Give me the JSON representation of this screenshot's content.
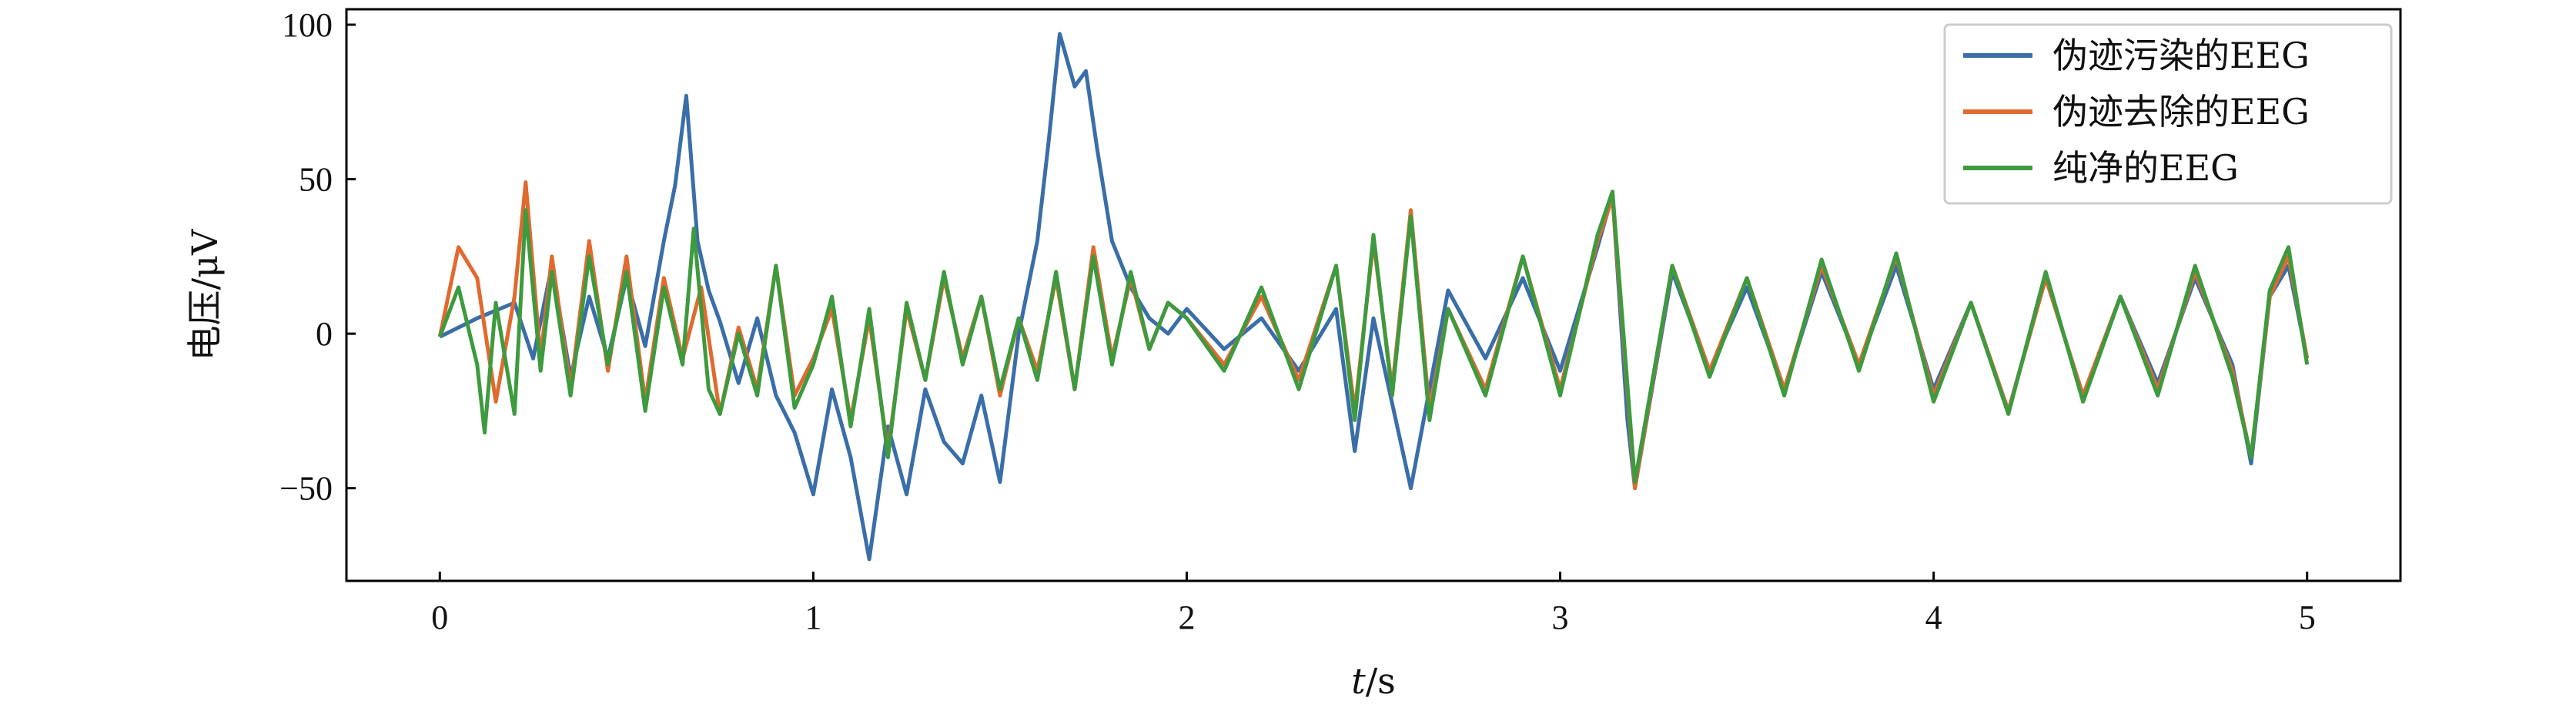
{
  "chart_data": {
    "type": "line",
    "xlabel_italic": "t",
    "xlabel_unit": "/s",
    "ylabel": "电压/μV",
    "xlim": [
      -0.25,
      5.25
    ],
    "ylim": [
      -80,
      105
    ],
    "xticks": [
      0,
      1,
      2,
      3,
      4,
      5
    ],
    "xtick_labels": [
      "0",
      "1",
      "2",
      "3",
      "4",
      "5"
    ],
    "yticks": [
      -50,
      0,
      50,
      100
    ],
    "ytick_labels": [
      "−50",
      "0",
      "50",
      "100"
    ],
    "grid": false,
    "legend_position": "top-right",
    "series": [
      {
        "name": "伪迹污染的EEG",
        "color": "#3a6ea8",
        "points": [
          [
            0,
            -1
          ],
          [
            0.1,
            5
          ],
          [
            0.2,
            10
          ],
          [
            0.25,
            -8
          ],
          [
            0.3,
            22
          ],
          [
            0.35,
            -14
          ],
          [
            0.4,
            12
          ],
          [
            0.45,
            -8
          ],
          [
            0.5,
            18
          ],
          [
            0.55,
            -4
          ],
          [
            0.6,
            30
          ],
          [
            0.63,
            48
          ],
          [
            0.66,
            77
          ],
          [
            0.69,
            30
          ],
          [
            0.72,
            14
          ],
          [
            0.75,
            4
          ],
          [
            0.8,
            -16
          ],
          [
            0.85,
            5
          ],
          [
            0.9,
            -20
          ],
          [
            0.95,
            -32
          ],
          [
            1.0,
            -52
          ],
          [
            1.05,
            -18
          ],
          [
            1.1,
            -40
          ],
          [
            1.15,
            -73
          ],
          [
            1.2,
            -30
          ],
          [
            1.25,
            -52
          ],
          [
            1.3,
            -18
          ],
          [
            1.35,
            -35
          ],
          [
            1.4,
            -42
          ],
          [
            1.45,
            -20
          ],
          [
            1.5,
            -48
          ],
          [
            1.55,
            0
          ],
          [
            1.6,
            30
          ],
          [
            1.63,
            62
          ],
          [
            1.66,
            97
          ],
          [
            1.7,
            80
          ],
          [
            1.73,
            85
          ],
          [
            1.76,
            60
          ],
          [
            1.8,
            30
          ],
          [
            1.85,
            15
          ],
          [
            1.9,
            5
          ],
          [
            1.95,
            0
          ],
          [
            2.0,
            8
          ],
          [
            2.1,
            -5
          ],
          [
            2.2,
            5
          ],
          [
            2.3,
            -12
          ],
          [
            2.4,
            8
          ],
          [
            2.45,
            -38
          ],
          [
            2.5,
            5
          ],
          [
            2.6,
            -50
          ],
          [
            2.7,
            14
          ],
          [
            2.8,
            -8
          ],
          [
            2.9,
            18
          ],
          [
            3.0,
            -12
          ],
          [
            3.1,
            28
          ],
          [
            3.14,
            45
          ],
          [
            3.18,
            -28
          ],
          [
            3.2,
            -50
          ],
          [
            3.3,
            20
          ],
          [
            3.4,
            -12
          ],
          [
            3.5,
            15
          ],
          [
            3.6,
            -18
          ],
          [
            3.7,
            20
          ],
          [
            3.8,
            -10
          ],
          [
            3.9,
            22
          ],
          [
            4.0,
            -18
          ],
          [
            4.1,
            10
          ],
          [
            4.2,
            -25
          ],
          [
            4.3,
            18
          ],
          [
            4.4,
            -20
          ],
          [
            4.5,
            12
          ],
          [
            4.6,
            -16
          ],
          [
            4.7,
            18
          ],
          [
            4.8,
            -10
          ],
          [
            4.85,
            -42
          ],
          [
            4.9,
            12
          ],
          [
            4.95,
            22
          ],
          [
            5.0,
            -8
          ]
        ]
      },
      {
        "name": "伪迹去除的EEG",
        "color": "#e06a2f",
        "points": [
          [
            0,
            -1
          ],
          [
            0.05,
            28
          ],
          [
            0.1,
            18
          ],
          [
            0.15,
            -22
          ],
          [
            0.2,
            12
          ],
          [
            0.23,
            49
          ],
          [
            0.27,
            -8
          ],
          [
            0.3,
            25
          ],
          [
            0.35,
            -18
          ],
          [
            0.4,
            30
          ],
          [
            0.45,
            -12
          ],
          [
            0.5,
            25
          ],
          [
            0.55,
            -22
          ],
          [
            0.6,
            18
          ],
          [
            0.65,
            -8
          ],
          [
            0.7,
            15
          ],
          [
            0.75,
            -26
          ],
          [
            0.8,
            2
          ],
          [
            0.85,
            -18
          ],
          [
            0.9,
            22
          ],
          [
            0.95,
            -20
          ],
          [
            1.0,
            -8
          ],
          [
            1.05,
            8
          ],
          [
            1.1,
            -28
          ],
          [
            1.15,
            5
          ],
          [
            1.2,
            -38
          ],
          [
            1.25,
            8
          ],
          [
            1.3,
            -15
          ],
          [
            1.35,
            18
          ],
          [
            1.4,
            -8
          ],
          [
            1.45,
            12
          ],
          [
            1.5,
            -20
          ],
          [
            1.55,
            5
          ],
          [
            1.6,
            -12
          ],
          [
            1.65,
            18
          ],
          [
            1.7,
            -18
          ],
          [
            1.75,
            28
          ],
          [
            1.8,
            -8
          ],
          [
            1.85,
            18
          ],
          [
            1.9,
            -5
          ],
          [
            1.95,
            10
          ],
          [
            2.0,
            5
          ],
          [
            2.1,
            -10
          ],
          [
            2.2,
            12
          ],
          [
            2.3,
            -15
          ],
          [
            2.4,
            22
          ],
          [
            2.45,
            -25
          ],
          [
            2.5,
            30
          ],
          [
            2.55,
            -18
          ],
          [
            2.6,
            40
          ],
          [
            2.65,
            -25
          ],
          [
            2.7,
            8
          ],
          [
            2.8,
            -18
          ],
          [
            2.9,
            25
          ],
          [
            3.0,
            -18
          ],
          [
            3.1,
            30
          ],
          [
            3.14,
            44
          ],
          [
            3.2,
            -50
          ],
          [
            3.3,
            22
          ],
          [
            3.4,
            -12
          ],
          [
            3.5,
            18
          ],
          [
            3.6,
            -18
          ],
          [
            3.7,
            22
          ],
          [
            3.8,
            -10
          ],
          [
            3.9,
            25
          ],
          [
            4.0,
            -20
          ],
          [
            4.1,
            10
          ],
          [
            4.2,
            -25
          ],
          [
            4.3,
            18
          ],
          [
            4.4,
            -20
          ],
          [
            4.5,
            12
          ],
          [
            4.6,
            -18
          ],
          [
            4.7,
            20
          ],
          [
            4.8,
            -12
          ],
          [
            4.85,
            -40
          ],
          [
            4.9,
            12
          ],
          [
            4.95,
            25
          ],
          [
            5.0,
            -8
          ]
        ]
      },
      {
        "name": "纯净的EEG",
        "color": "#3e9a3e",
        "points": [
          [
            0,
            -1
          ],
          [
            0.05,
            15
          ],
          [
            0.1,
            -10
          ],
          [
            0.12,
            -32
          ],
          [
            0.15,
            10
          ],
          [
            0.2,
            -26
          ],
          [
            0.23,
            40
          ],
          [
            0.27,
            -12
          ],
          [
            0.3,
            20
          ],
          [
            0.35,
            -20
          ],
          [
            0.4,
            25
          ],
          [
            0.45,
            -10
          ],
          [
            0.5,
            20
          ],
          [
            0.55,
            -25
          ],
          [
            0.6,
            15
          ],
          [
            0.65,
            -10
          ],
          [
            0.68,
            34
          ],
          [
            0.72,
            -18
          ],
          [
            0.75,
            -26
          ],
          [
            0.8,
            0
          ],
          [
            0.85,
            -20
          ],
          [
            0.9,
            22
          ],
          [
            0.95,
            -24
          ],
          [
            1.0,
            -10
          ],
          [
            1.05,
            12
          ],
          [
            1.1,
            -30
          ],
          [
            1.15,
            8
          ],
          [
            1.2,
            -40
          ],
          [
            1.25,
            10
          ],
          [
            1.3,
            -15
          ],
          [
            1.35,
            20
          ],
          [
            1.4,
            -10
          ],
          [
            1.45,
            12
          ],
          [
            1.5,
            -18
          ],
          [
            1.55,
            5
          ],
          [
            1.6,
            -15
          ],
          [
            1.65,
            20
          ],
          [
            1.7,
            -18
          ],
          [
            1.75,
            25
          ],
          [
            1.8,
            -10
          ],
          [
            1.85,
            20
          ],
          [
            1.9,
            -5
          ],
          [
            1.95,
            10
          ],
          [
            2.0,
            5
          ],
          [
            2.1,
            -12
          ],
          [
            2.2,
            15
          ],
          [
            2.3,
            -18
          ],
          [
            2.4,
            22
          ],
          [
            2.45,
            -28
          ],
          [
            2.5,
            32
          ],
          [
            2.55,
            -20
          ],
          [
            2.6,
            38
          ],
          [
            2.65,
            -28
          ],
          [
            2.7,
            8
          ],
          [
            2.8,
            -20
          ],
          [
            2.9,
            25
          ],
          [
            3.0,
            -20
          ],
          [
            3.1,
            32
          ],
          [
            3.14,
            46
          ],
          [
            3.2,
            -48
          ],
          [
            3.3,
            22
          ],
          [
            3.4,
            -14
          ],
          [
            3.5,
            18
          ],
          [
            3.6,
            -20
          ],
          [
            3.7,
            24
          ],
          [
            3.8,
            -12
          ],
          [
            3.9,
            26
          ],
          [
            4.0,
            -22
          ],
          [
            4.1,
            10
          ],
          [
            4.2,
            -26
          ],
          [
            4.3,
            20
          ],
          [
            4.4,
            -22
          ],
          [
            4.5,
            12
          ],
          [
            4.6,
            -20
          ],
          [
            4.7,
            22
          ],
          [
            4.8,
            -14
          ],
          [
            4.85,
            -40
          ],
          [
            4.9,
            14
          ],
          [
            4.95,
            28
          ],
          [
            5.0,
            -10
          ]
        ]
      }
    ]
  }
}
